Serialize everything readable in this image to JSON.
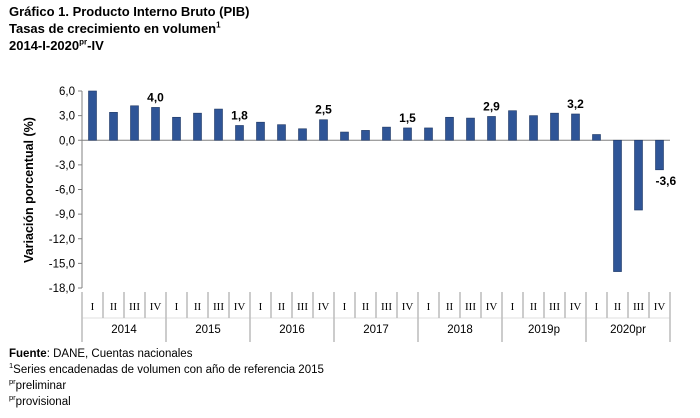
{
  "header": {
    "title": "Gráfico 1. Producto Interno Bruto (PIB)",
    "subtitle_text": "Tasas de crecimiento en volumen",
    "subtitle_sup": "1",
    "period_text": "2014-I-2020",
    "period_sup": "pr",
    "period_suffix": "-IV"
  },
  "chart_data": {
    "type": "bar",
    "ylabel": "Variación porcentual  (%)",
    "ylim": [
      -18.0,
      6.0
    ],
    "yticks": [
      "6,0",
      "3,0",
      "0,0",
      "-3,0",
      "-6,0",
      "-9,0",
      "-12,0",
      "-15,0",
      "-18,0"
    ],
    "ytick_values": [
      6,
      3,
      0,
      -3,
      -6,
      -9,
      -12,
      -15,
      -18
    ],
    "bar_color": "#2F5597",
    "categories": [
      "I",
      "II",
      "III",
      "IV",
      "I",
      "II",
      "III",
      "IV",
      "I",
      "II",
      "III",
      "IV",
      "I",
      "II",
      "III",
      "IV",
      "I",
      "II",
      "III",
      "IV",
      "I",
      "II",
      "III",
      "IV",
      "I",
      "II",
      "III",
      "IV"
    ],
    "years": [
      "2014",
      "2015",
      "2016",
      "2017",
      "2018",
      "2019p",
      "2020pr"
    ],
    "values": [
      6.0,
      3.4,
      4.2,
      4.0,
      2.8,
      3.3,
      3.8,
      1.8,
      2.2,
      1.9,
      1.4,
      2.5,
      1.0,
      1.2,
      1.6,
      1.5,
      1.5,
      2.8,
      2.7,
      2.9,
      3.6,
      3.0,
      3.3,
      3.2,
      0.7,
      -16.0,
      -8.5,
      -3.6
    ],
    "data_labels": [
      {
        "index": 3,
        "text": "4,0"
      },
      {
        "index": 7,
        "text": "1,8"
      },
      {
        "index": 11,
        "text": "2,5"
      },
      {
        "index": 15,
        "text": "1,5"
      },
      {
        "index": 19,
        "text": "2,9"
      },
      {
        "index": 23,
        "text": "3,2"
      },
      {
        "index": 27,
        "text": "-3,6"
      }
    ]
  },
  "notes": {
    "source_label": "Fuente",
    "source_text": ": DANE, Cuentas nacionales",
    "note1_sup": "1",
    "note1_text": "Series encadenadas de volumen con año de referencia 2015",
    "note2_sup": "pr",
    "note2_text": "preliminar",
    "note3_sup": "pr",
    "note3_text": "provisional"
  }
}
